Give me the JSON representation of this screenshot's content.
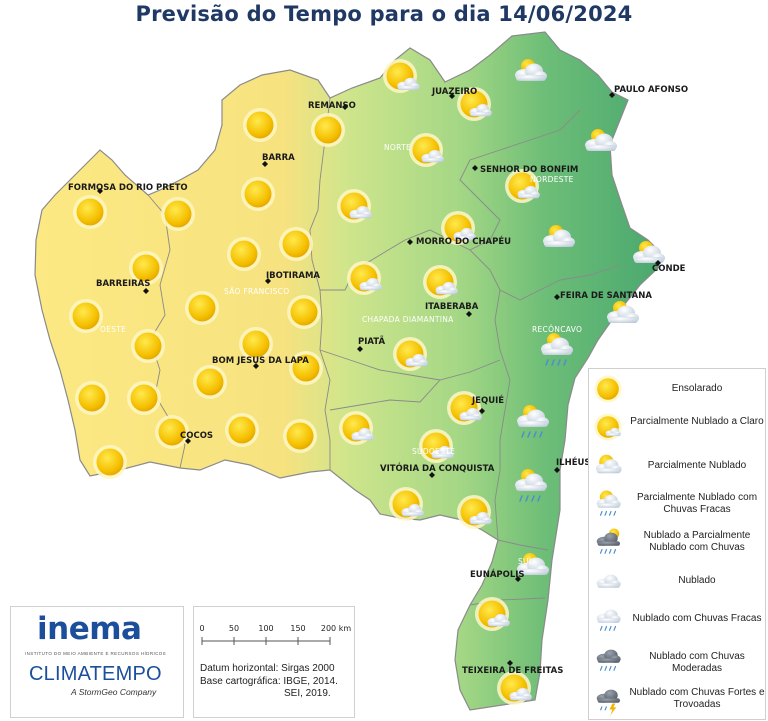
{
  "title": "Previsão do Tempo para o dia 14/06/2024",
  "colors": {
    "yellow": "#fde983",
    "green_light": "#bfe08a",
    "green_dark": "#4fae72",
    "border": "#7a7a7a",
    "sun": "#f5c000",
    "cloud": "#d8e3ee"
  },
  "cities": [
    {
      "name": "REMANSO"
    },
    {
      "name": "JUAZEIRO"
    },
    {
      "name": "PAULO AFONSO"
    },
    {
      "name": "BARRA"
    },
    {
      "name": "FORMOSA DO RIO PRETO"
    },
    {
      "name": "SENHOR DO BONFIM"
    },
    {
      "name": "MORRO DO CHAPÉU"
    },
    {
      "name": "IBOTIRAMA"
    },
    {
      "name": "BARREIRAS"
    },
    {
      "name": "CONDE"
    },
    {
      "name": "FEIRA DE SANTANA"
    },
    {
      "name": "ITABERABA"
    },
    {
      "name": "PIATÃ"
    },
    {
      "name": "BOM JESUS DA LAPA"
    },
    {
      "name": "JEQUIÉ"
    },
    {
      "name": "COCOS"
    },
    {
      "name": "ILHÉUS"
    },
    {
      "name": "VITÓRIA DA CONQUISTA"
    },
    {
      "name": "EUNÁPOLIS"
    },
    {
      "name": "TEIXEIRA DE FREITAS"
    }
  ],
  "regions": [
    "NORTE",
    "NORDESTE",
    "SÃO FRANCISCO",
    "OESTE",
    "CHAPADA DIAMANTINA",
    "RECÔNCAVO",
    "SUDOESTE",
    "SUL"
  ],
  "legend": [
    {
      "label": "Ensolarado",
      "icon": "sun-icon"
    },
    {
      "label": "Parcialmente Nublado a Claro",
      "icon": "sun-small-cloud-icon"
    },
    {
      "label": "Parcialmente Nublado",
      "icon": "partly-cloudy-icon"
    },
    {
      "label": "Parcialmente Nublado com Chuvas Fracas",
      "icon": "partly-cloudy-light-rain-icon"
    },
    {
      "label": "Nublado a Parcialmente Nublado com Chuvas",
      "icon": "cloudy-rain-icon"
    },
    {
      "label": "Nublado",
      "icon": "cloud-icon"
    },
    {
      "label": "Nublado com Chuvas Fracas",
      "icon": "cloud-light-rain-icon"
    },
    {
      "label": "Nublado com Chuvas Moderadas",
      "icon": "cloud-moderate-rain-icon"
    },
    {
      "label": "Nublado com Chuvas Fortes e Trovoadas",
      "icon": "storm-icon"
    }
  ],
  "scale": {
    "ticks": [
      "0",
      "50",
      "100",
      "150",
      "200 km"
    ]
  },
  "datum": {
    "line1": "Datum horizontal: Sirgas 2000",
    "line2": "Base cartográfica: IBGE, 2014.",
    "line3": "SEI, 2019."
  },
  "logos": {
    "inema": "inema",
    "inema_sub": "INSTITUTO DO MEIO AMBIENTE E RECURSOS HÍDRICOS",
    "climatempo": "CLIMATEMPO",
    "climatempo_sub": "A StormGeo Company"
  }
}
